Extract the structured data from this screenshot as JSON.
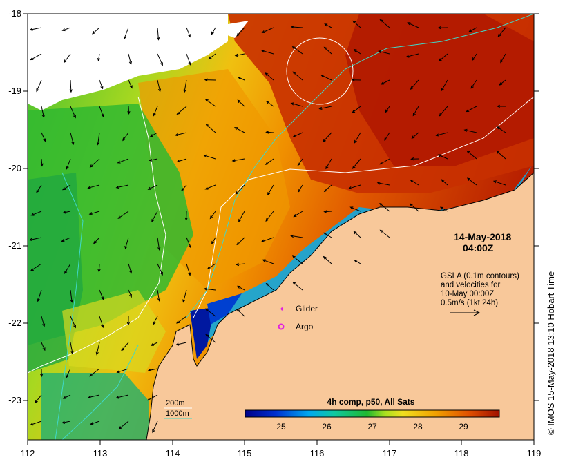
{
  "axes": {
    "x_ticks": [
      "112",
      "113",
      "114",
      "115",
      "116",
      "117",
      "118",
      "119"
    ],
    "y_ticks": [
      "-18",
      "-19",
      "-20",
      "-21",
      "-22",
      "-23"
    ]
  },
  "datetime": {
    "date": "14-May-2018",
    "time": "04:00Z"
  },
  "gsla_note": {
    "line1": "GSLA (0.1m contours)",
    "line2": "and velocities for",
    "line3": "10-May 00:00Z",
    "line4": "0.5m/s (1kt 24h)"
  },
  "markers": {
    "glider": "Glider",
    "argo": "Argo"
  },
  "bathy_legend": {
    "line200": "200m",
    "line1000": "1000m"
  },
  "colorbar": {
    "title": "4h comp, p50, All Sats",
    "ticks": [
      "25",
      "26",
      "27",
      "28",
      "29"
    ]
  },
  "side_label": "© IMOS 15-May-2018 13:10 Hobart Time",
  "colors": {
    "land": "#f8c89a",
    "cloud": "#ffffff",
    "contour_200": "#ffffff",
    "contour_1000": "#40d8c8",
    "glider": "#e020e0",
    "argo": "#e020e0"
  }
}
